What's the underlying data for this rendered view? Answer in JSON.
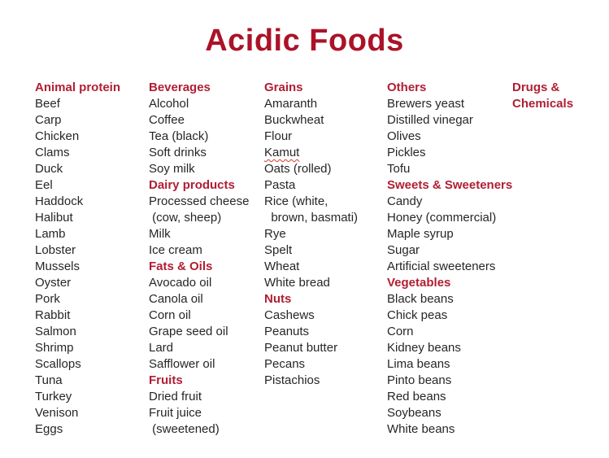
{
  "title": "Acidic Foods",
  "colors": {
    "title": "#ab1228",
    "header": "#b01e33",
    "body": "#262626",
    "underline": "#cf3a2b",
    "background": "#ffffff"
  },
  "columns": [
    {
      "blocks": [
        {
          "header": "Animal protein",
          "items": [
            "Beef",
            "Carp",
            "Chicken",
            "Clams",
            "Duck",
            "Eel",
            "Haddock",
            "Halibut",
            "Lamb",
            "Lobster",
            "Mussels",
            "Oyster",
            "Pork",
            "Rabbit",
            "Salmon",
            "Shrimp",
            "Scallops",
            "Tuna",
            "Turkey",
            "Venison",
            "Eggs"
          ]
        }
      ]
    },
    {
      "blocks": [
        {
          "header": "Beverages",
          "items": [
            "Alcohol",
            "Coffee",
            "Tea (black)",
            "Soft drinks",
            "Soy milk"
          ]
        },
        {
          "header": "Dairy products",
          "items": [
            "Processed cheese",
            " (cow, sheep)",
            "Milk",
            "Ice cream"
          ]
        },
        {
          "header": "Fats & Oils",
          "items": [
            "Avocado oil",
            "Canola oil",
            "Corn oil",
            "Grape seed oil",
            "Lard",
            "Safflower oil"
          ]
        },
        {
          "header": "Fruits",
          "items": [
            "Dried fruit",
            "Fruit juice",
            " (sweetened)"
          ]
        }
      ]
    },
    {
      "blocks": [
        {
          "header": "Grains",
          "items": [
            "Amaranth",
            "Buckwheat",
            "Flour",
            {
              "text": "Kamut",
              "wavy": true
            },
            "Oats (rolled)",
            "Pasta",
            "Rice (white,",
            "  brown, basmati)",
            "Rye",
            "Spelt",
            "Wheat",
            "White bread"
          ]
        },
        {
          "header": "Nuts",
          "items": [
            "Cashews",
            "Peanuts",
            "Peanut butter",
            "Pecans",
            "Pistachios"
          ]
        }
      ]
    },
    {
      "blocks": [
        {
          "header": "Others",
          "items": [
            "Brewers yeast",
            "Distilled vinegar",
            "Olives",
            "Pickles",
            "Tofu"
          ]
        },
        {
          "header": "Sweets & Sweeteners",
          "items": [
            "Candy",
            "Honey (commercial)",
            "Maple syrup",
            "Sugar",
            "Artificial sweeteners"
          ]
        },
        {
          "header": "Vegetables",
          "items": [
            "Black beans",
            "Chick peas",
            "Corn",
            "Kidney beans",
            "Lima beans",
            "Pinto beans",
            "Red beans",
            "Soybeans",
            "White beans"
          ]
        }
      ]
    },
    {
      "blocks": [
        {
          "header": "Drugs &",
          "header2": "Chemicals",
          "items": []
        }
      ]
    }
  ]
}
